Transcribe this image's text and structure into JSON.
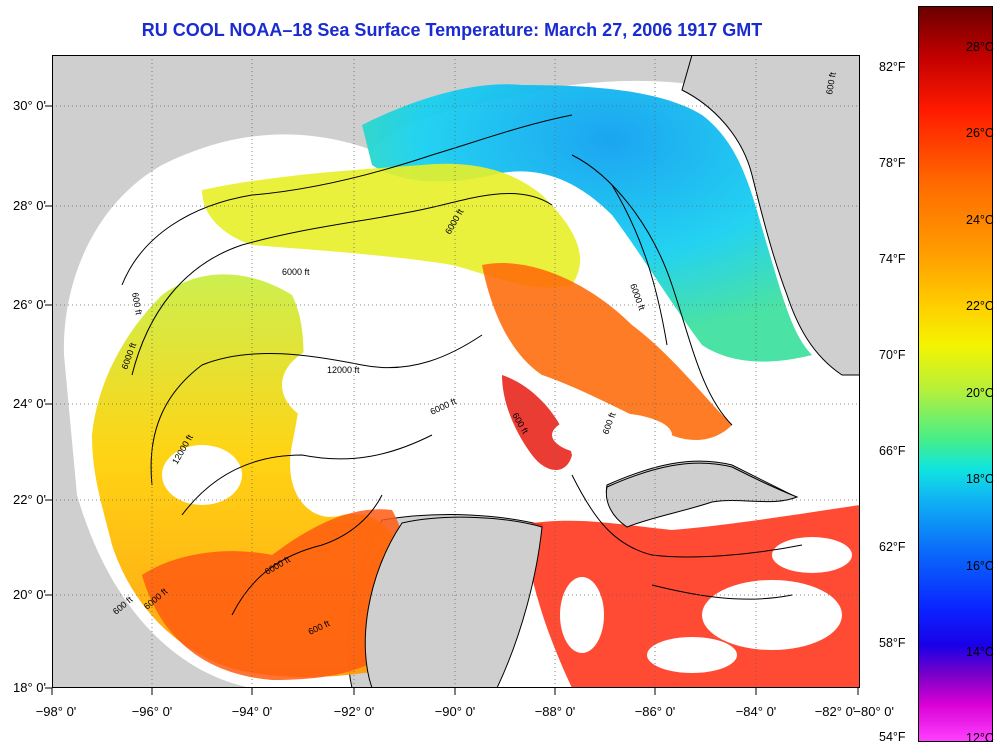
{
  "title": "RU COOL  NOAA–18  Sea Surface Temperature:  March 27, 2006 1917 GMT",
  "lon_labels": [
    "−98° 0'",
    "−96° 0'",
    "−94° 0'",
    "−92° 0'",
    "−90° 0'",
    "−88° 0'",
    "−86° 0'",
    "−84° 0'",
    "−82° 0'",
    "−80° 0'"
  ],
  "lat_labels": [
    "30° 0'",
    "28° 0'",
    "26° 0'",
    "24° 0'",
    "22° 0'",
    "20° 0'",
    "18° 0'"
  ],
  "colorbar": {
    "fahrenheit": [
      "82°F",
      "78°F",
      "74°F",
      "70°F",
      "66°F",
      "62°F",
      "58°F",
      "54°F"
    ],
    "celsius": [
      "28°C",
      "26°C",
      "24°C",
      "22°C",
      "20°C",
      "18°C",
      "16°C",
      "14°C",
      "12°C"
    ]
  },
  "contours": {
    "c1": "600 ft",
    "c2": "600 ft",
    "c3": "6000 ft",
    "c4": "6000 ft",
    "c5": "6000 ft",
    "c6": "12000 ft",
    "c7": "12000 ft",
    "c8": "6000 ft",
    "c9": "6000 ft",
    "c10": "600 ft",
    "c11": "600 ft",
    "c12": "6000 ft",
    "c13": "600 ft",
    "c14": "6000 ft",
    "c15": "600 ft"
  }
}
